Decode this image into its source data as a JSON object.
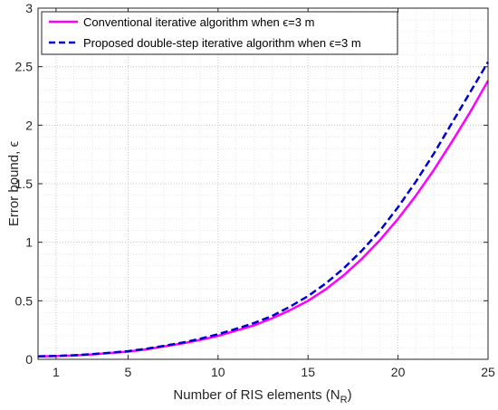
{
  "chart_data": {
    "type": "line",
    "xlabel": "Number of RIS elements (N",
    "xlabel_sub": "R",
    "xlabel_tail": ")",
    "ylabel": "Error bound, ϵ",
    "xlim": [
      0,
      25
    ],
    "ylim": [
      0,
      3
    ],
    "x_ticks": [
      1,
      5,
      10,
      15,
      20,
      25
    ],
    "y_ticks": [
      0,
      0.5,
      1,
      1.5,
      2,
      2.5,
      3
    ],
    "x_tick_labels": [
      "1",
      "5",
      "10",
      "15",
      "20",
      "25"
    ],
    "y_tick_labels": [
      "0",
      "0.5",
      "1",
      "1.5",
      "2",
      "2.5",
      "3"
    ],
    "grid": "major and minor, dotted",
    "legend_position": "top-left",
    "series": [
      {
        "name": "Conventional iterative algorithm when ϵ=3 m",
        "color": "#ff00ff",
        "style": "solid",
        "x": [
          0,
          1,
          2,
          3,
          4,
          5,
          6,
          7,
          8,
          9,
          10,
          11,
          12,
          13,
          14,
          15,
          16,
          17,
          18,
          19,
          20,
          21,
          22,
          23,
          24,
          25
        ],
        "y": [
          0.025,
          0.028,
          0.033,
          0.042,
          0.054,
          0.066,
          0.085,
          0.11,
          0.135,
          0.165,
          0.2,
          0.245,
          0.29,
          0.35,
          0.42,
          0.5,
          0.6,
          0.72,
          0.86,
          1.02,
          1.2,
          1.4,
          1.62,
          1.86,
          2.11,
          2.38
        ]
      },
      {
        "name": "Proposed double-step iterative algorithm when ϵ=3 m",
        "color": "#0000cc",
        "style": "dashed",
        "x": [
          0,
          1,
          2,
          3,
          4,
          5,
          6,
          7,
          8,
          9,
          10,
          11,
          12,
          13,
          14,
          15,
          16,
          17,
          18,
          19,
          20,
          21,
          22,
          23,
          24,
          25
        ],
        "y": [
          0.025,
          0.029,
          0.035,
          0.044,
          0.056,
          0.07,
          0.09,
          0.115,
          0.142,
          0.175,
          0.215,
          0.26,
          0.31,
          0.37,
          0.45,
          0.54,
          0.65,
          0.78,
          0.93,
          1.1,
          1.3,
          1.52,
          1.76,
          2.02,
          2.28,
          2.54
        ]
      }
    ]
  }
}
